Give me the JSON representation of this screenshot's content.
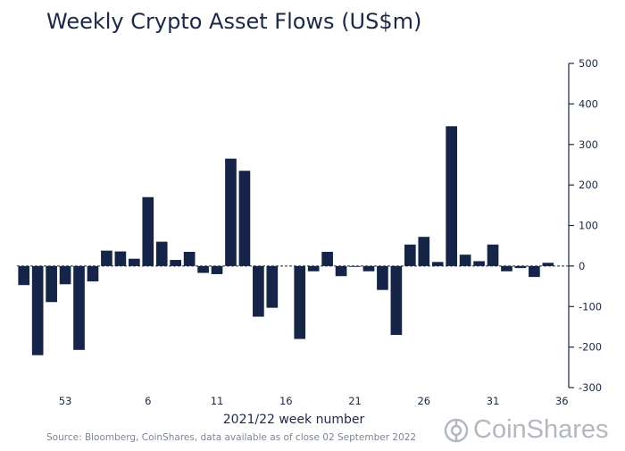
{
  "chart_data": {
    "type": "bar",
    "title": "Weekly Crypto Asset Flows (US$m)",
    "xlabel": "2021/22 week number",
    "ylabel": "",
    "x_tick_labels": [
      "53",
      "6",
      "11",
      "16",
      "21",
      "26",
      "31",
      "36"
    ],
    "y_ticks": [
      500,
      400,
      300,
      200,
      100,
      0,
      -100,
      -200,
      -300
    ],
    "ylim": [
      -300,
      500
    ],
    "y_axis_side": "right",
    "grid": false,
    "color": "#162447",
    "categories": [
      "50",
      "51",
      "52",
      "53",
      "1",
      "2",
      "3",
      "4",
      "5",
      "6",
      "7",
      "8",
      "9",
      "10",
      "11",
      "12",
      "13",
      "14",
      "15",
      "16",
      "17",
      "18",
      "19",
      "20",
      "21",
      "22",
      "23",
      "24",
      "25",
      "26",
      "27",
      "28",
      "29",
      "30",
      "31",
      "32",
      "33",
      "34",
      "35",
      "36"
    ],
    "values": [
      -47,
      -220,
      -89,
      -45,
      -207,
      -38,
      38,
      36,
      18,
      170,
      60,
      15,
      35,
      -17,
      -20,
      265,
      235,
      -125,
      -103,
      0,
      -180,
      -13,
      35,
      -25,
      -2,
      -13,
      -59,
      -170,
      53,
      72,
      10,
      345,
      28,
      12,
      53,
      -13,
      -5,
      -27,
      8,
      0
    ]
  },
  "source_note": "Source: Bloomberg, CoinShares, data available as of close 02 September 2022",
  "brand": {
    "name": "CoinShares",
    "logo_icon": "coinshares-logo-icon"
  }
}
